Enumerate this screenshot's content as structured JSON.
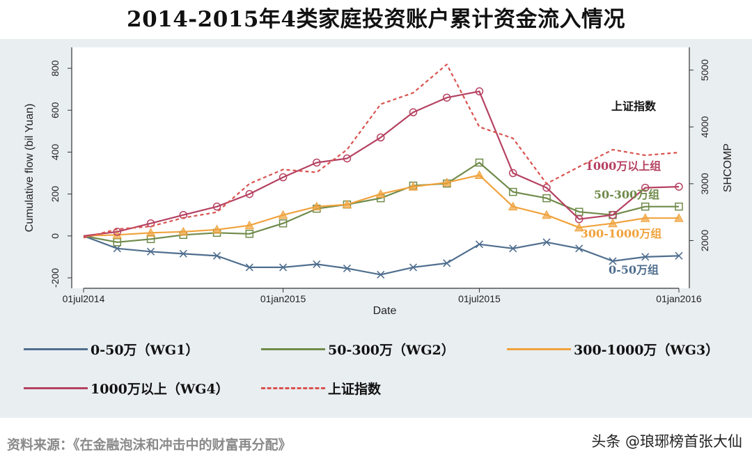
{
  "title": "2014-2015年4类家庭投资账户累计资金流入情况",
  "source": "资料来源：《在金融泡沫和冲击中的财富再分配》",
  "watermark": "头条 @琅琊榜首张大仙",
  "chart_data": {
    "type": "line",
    "xlabel": "Date",
    "ylabel_left": "Cumulative flow (bil Yuan)",
    "ylabel_right": "SHCOMP",
    "ylim_left": [
      -250,
      900
    ],
    "ylim_right": [
      1160,
      5400
    ],
    "xlim": [
      "2014-07-01",
      "2016-01-01"
    ],
    "x_ticks": [
      "01jul2014",
      "01jan2015",
      "01jul2015",
      "01jan2016"
    ],
    "y_ticks_left": [
      -200,
      0,
      200,
      400,
      600,
      800
    ],
    "y_ticks_right": [
      2000,
      3000,
      4000,
      5000
    ],
    "grid": false,
    "legend_position": "bottom",
    "series": [
      {
        "name": "0-50万（WG1）",
        "label": "0-50万组",
        "color": "#4f6e8e",
        "marker": "x",
        "axis": "left",
        "x": [
          "2014-07-01",
          "2014-08-01",
          "2014-09-01",
          "2014-10-01",
          "2014-11-01",
          "2014-12-01",
          "2015-01-01",
          "2015-02-01",
          "2015-03-01",
          "2015-04-01",
          "2015-05-01",
          "2015-06-01",
          "2015-07-01",
          "2015-08-01",
          "2015-09-01",
          "2015-10-01",
          "2015-11-01",
          "2015-12-01",
          "2016-01-01"
        ],
        "values": [
          0,
          -60,
          -75,
          -85,
          -95,
          -150,
          -150,
          -135,
          -155,
          -185,
          -150,
          -130,
          -40,
          -60,
          -30,
          -60,
          -120,
          -100,
          -95
        ]
      },
      {
        "name": "50-300万（WG2）",
        "label": "50-300万组",
        "color": "#6f8a4a",
        "marker": "square",
        "axis": "left",
        "x": [
          "2014-07-01",
          "2014-08-01",
          "2014-09-01",
          "2014-10-01",
          "2014-11-01",
          "2014-12-01",
          "2015-01-01",
          "2015-02-01",
          "2015-03-01",
          "2015-04-01",
          "2015-05-01",
          "2015-06-01",
          "2015-07-01",
          "2015-08-01",
          "2015-09-01",
          "2015-10-01",
          "2015-11-01",
          "2015-12-01",
          "2016-01-01"
        ],
        "values": [
          0,
          -30,
          -15,
          5,
          15,
          10,
          60,
          130,
          150,
          180,
          240,
          250,
          350,
          210,
          180,
          115,
          100,
          140,
          140
        ]
      },
      {
        "name": "300-1000万（WG3）",
        "label": "300-1000万组",
        "color": "#f0a23c",
        "marker": "triangle",
        "axis": "left",
        "x": [
          "2014-07-01",
          "2014-08-01",
          "2014-09-01",
          "2014-10-01",
          "2014-11-01",
          "2014-12-01",
          "2015-01-01",
          "2015-02-01",
          "2015-03-01",
          "2015-04-01",
          "2015-05-01",
          "2015-06-01",
          "2015-07-01",
          "2015-08-01",
          "2015-09-01",
          "2015-10-01",
          "2015-11-01",
          "2015-12-01",
          "2016-01-01"
        ],
        "values": [
          0,
          5,
          15,
          20,
          30,
          50,
          100,
          140,
          150,
          200,
          235,
          255,
          290,
          140,
          100,
          40,
          60,
          85,
          85
        ]
      },
      {
        "name": "1000万以上（WG4）",
        "label": "1000万以上组",
        "color": "#b54161",
        "marker": "circle",
        "axis": "left",
        "x": [
          "2014-07-01",
          "2014-08-01",
          "2014-09-01",
          "2014-10-01",
          "2014-11-01",
          "2014-12-01",
          "2015-01-01",
          "2015-02-01",
          "2015-03-01",
          "2015-04-01",
          "2015-05-01",
          "2015-06-01",
          "2015-07-01",
          "2015-08-01",
          "2015-09-01",
          "2015-10-01",
          "2015-11-01",
          "2015-12-01",
          "2016-01-01"
        ],
        "values": [
          0,
          20,
          60,
          100,
          140,
          200,
          280,
          350,
          370,
          470,
          590,
          660,
          690,
          300,
          230,
          80,
          100,
          230,
          235
        ]
      },
      {
        "name": "上证指数",
        "label": "上证指数",
        "color": "#d9534f",
        "style": "dashed",
        "axis": "right",
        "x": [
          "2014-07-01",
          "2014-08-01",
          "2014-09-01",
          "2014-10-01",
          "2014-11-01",
          "2014-12-01",
          "2015-01-01",
          "2015-02-01",
          "2015-03-01",
          "2015-04-01",
          "2015-05-01",
          "2015-06-01",
          "2015-07-01",
          "2015-08-01",
          "2015-09-01",
          "2015-10-01",
          "2015-11-01",
          "2015-12-01",
          "2016-01-01"
        ],
        "values": [
          2050,
          2200,
          2250,
          2400,
          2500,
          3000,
          3250,
          3200,
          3600,
          4400,
          4600,
          5100,
          4000,
          3800,
          3000,
          3300,
          3600,
          3500,
          3550
        ]
      }
    ]
  }
}
